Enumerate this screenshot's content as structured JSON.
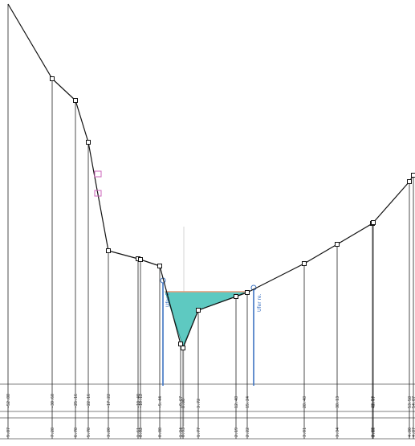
{
  "title": "",
  "colors": {
    "ground_line": "#111111",
    "water_fill": "#5ec9c1",
    "water_surface": "#e89a78",
    "bank_marker": "#3d73c2",
    "pink_marker": "#cc66bb"
  },
  "bank_labels": {
    "left": "Ufer li.",
    "right": "Ufer re."
  },
  "stations": [
    {
      "label_top": "-52.88",
      "label_bottom": "9.87"
    },
    {
      "label_top": "-30.60",
      "label_bottom": "7.28"
    },
    {
      "label_top": "-25.16",
      "label_bottom": "6.78"
    },
    {
      "label_top": "-22.16",
      "label_bottom": "5.78"
    },
    {
      "label_top": "-17.22",
      "label_bottom": "3.20"
    },
    {
      "label_top": "-10.40",
      "label_bottom": "1.61"
    },
    {
      "label_top": "-10.12",
      "label_bottom": "0.02"
    },
    {
      "label_top": "-5.44",
      "label_bottom": "0.88"
    },
    {
      "label_top": "-0.67",
      "label_bottom": "1.94"
    },
    {
      "label_top": "0.00",
      "label_bottom": "0.93"
    },
    {
      "label_top": "3.72",
      "label_bottom": "1.77"
    },
    {
      "label_top": "12.48",
      "label_bottom": "2.19"
    },
    {
      "label_top": "15.24",
      "label_bottom": "2.22"
    },
    {
      "label_top": "28.48",
      "label_bottom": "3.01"
    },
    {
      "label_top": "38.13",
      "label_bottom": "3.34"
    },
    {
      "label_top": "48.54",
      "label_bottom": "3.80"
    },
    {
      "label_top": "48.97",
      "label_bottom": "3.86"
    },
    {
      "label_top": "53.58",
      "label_bottom": "4.80"
    },
    {
      "label_top": "54.07",
      "label_bottom": "4.87"
    }
  ]
}
